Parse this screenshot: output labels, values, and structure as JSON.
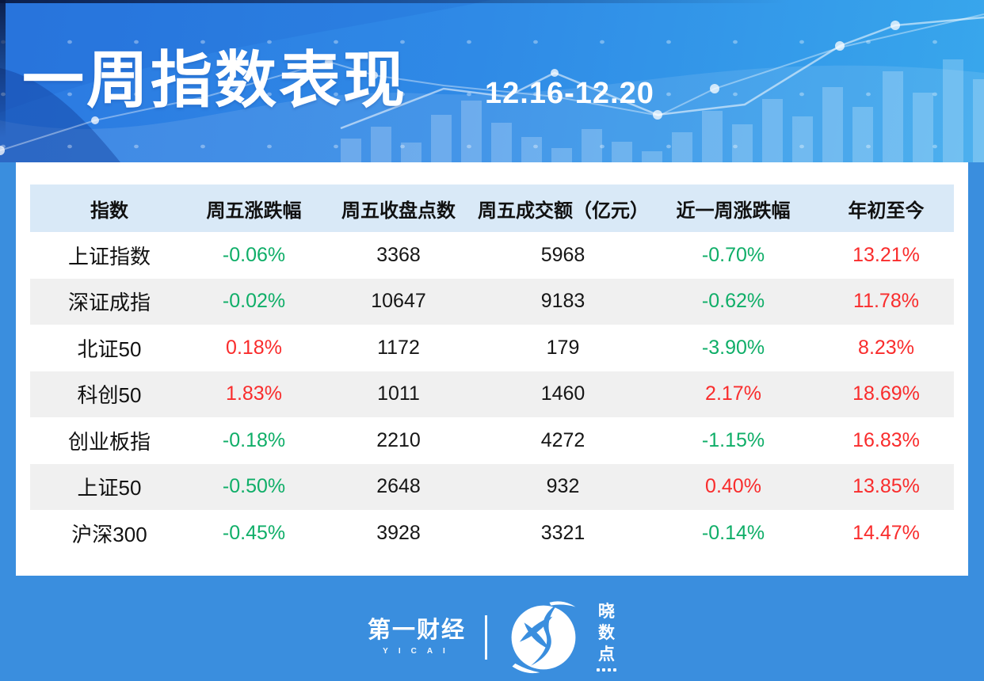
{
  "banner": {
    "title": "一周指数表现",
    "date_range": "12.16-12.20"
  },
  "table": {
    "columns": [
      "指数",
      "周五涨跌幅",
      "周五收盘点数",
      "周五成交额（亿元）",
      "近一周涨跌幅",
      "年初至今"
    ],
    "rows": [
      {
        "name": "上证指数",
        "friday_change": "-0.06%",
        "friday_change_dir": "down",
        "close": "3368",
        "turnover": "5968",
        "week_change": "-0.70%",
        "week_change_dir": "down",
        "ytd": "13.21%",
        "ytd_dir": "up"
      },
      {
        "name": "深证成指",
        "friday_change": "-0.02%",
        "friday_change_dir": "down",
        "close": "10647",
        "turnover": "9183",
        "week_change": "-0.62%",
        "week_change_dir": "down",
        "ytd": "11.78%",
        "ytd_dir": "up"
      },
      {
        "name": "北证50",
        "friday_change": "0.18%",
        "friday_change_dir": "up",
        "close": "1172",
        "turnover": "179",
        "week_change": "-3.90%",
        "week_change_dir": "down",
        "ytd": "8.23%",
        "ytd_dir": "up"
      },
      {
        "name": "科创50",
        "friday_change": "1.83%",
        "friday_change_dir": "up",
        "close": "1011",
        "turnover": "1460",
        "week_change": "2.17%",
        "week_change_dir": "up",
        "ytd": "18.69%",
        "ytd_dir": "up"
      },
      {
        "name": "创业板指",
        "friday_change": "-0.18%",
        "friday_change_dir": "down",
        "close": "2210",
        "turnover": "4272",
        "week_change": "-1.15%",
        "week_change_dir": "down",
        "ytd": "16.83%",
        "ytd_dir": "up"
      },
      {
        "name": "上证50",
        "friday_change": "-0.50%",
        "friday_change_dir": "down",
        "close": "2648",
        "turnover": "932",
        "week_change": "0.40%",
        "week_change_dir": "up",
        "ytd": "13.85%",
        "ytd_dir": "up"
      },
      {
        "name": "沪深300",
        "friday_change": "-0.45%",
        "friday_change_dir": "down",
        "close": "3928",
        "turnover": "3321",
        "week_change": "-0.14%",
        "week_change_dir": "down",
        "ytd": "14.47%",
        "ytd_dir": "up"
      }
    ]
  },
  "footer": {
    "brand_cn": "第一财经",
    "brand_en": "YICAI",
    "right_brand_chars": [
      "晓",
      "数",
      "点"
    ]
  },
  "colors": {
    "up": "#f92c2c",
    "down": "#0fae68",
    "accent_blue": "#3a8ede",
    "banner_blue_left": "#2b79e1",
    "banner_blue_right": "#38a7ec",
    "header_row_bg": "#d9e9f7",
    "stripe_bg": "#f0f0f0"
  },
  "chart_data": {
    "type": "table",
    "title": "一周指数表现",
    "period": "12.16-12.20",
    "columns": [
      "指数",
      "周五涨跌幅",
      "周五收盘点数",
      "周五成交额（亿元）",
      "近一周涨跌幅",
      "年初至今"
    ],
    "rows": [
      [
        "上证指数",
        "-0.06%",
        3368,
        5968,
        "-0.70%",
        "13.21%"
      ],
      [
        "深证成指",
        "-0.02%",
        10647,
        9183,
        "-0.62%",
        "11.78%"
      ],
      [
        "北证50",
        "0.18%",
        1172,
        179,
        "-3.90%",
        "8.23%"
      ],
      [
        "科创50",
        "1.83%",
        1011,
        1460,
        "2.17%",
        "18.69%"
      ],
      [
        "创业板指",
        "-0.18%",
        2210,
        4272,
        "-1.15%",
        "16.83%"
      ],
      [
        "上证50",
        "-0.50%",
        2648,
        932,
        "0.40%",
        "13.85%"
      ],
      [
        "沪深300",
        "-0.45%",
        3928,
        3321,
        "-0.14%",
        "14.47%"
      ]
    ],
    "color_convention": "red = rise, green = fall"
  }
}
